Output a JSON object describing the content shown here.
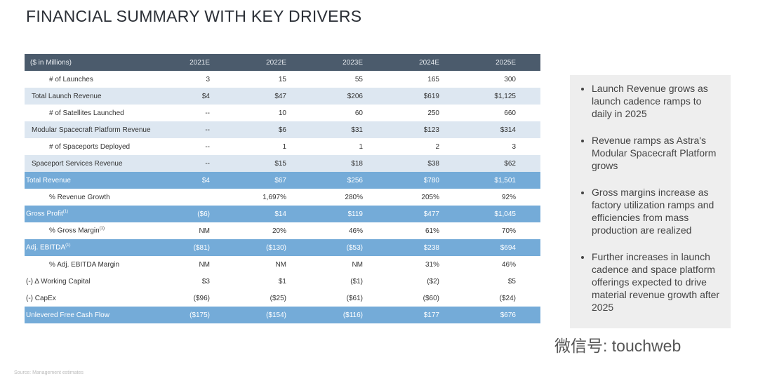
{
  "header": {
    "title": "FINANCIAL SUMMARY WITH KEY DRIVERS"
  },
  "table": {
    "columns": [
      "($ in Millions)",
      "2021E",
      "2022E",
      "2023E",
      "2024E",
      "2025E"
    ],
    "rows": [
      {
        "label": "# of Launches",
        "cells": [
          "3",
          "15",
          "55",
          "165",
          "300"
        ]
      },
      {
        "label": "Total Launch Revenue",
        "cells": [
          "$4",
          "$47",
          "$206",
          "$619",
          "$1,125"
        ]
      },
      {
        "label": "# of Satellites Launched",
        "cells": [
          "--",
          "10",
          "60",
          "250",
          "660"
        ]
      },
      {
        "label": "Modular Spacecraft Platform Revenue",
        "cells": [
          "--",
          "$6",
          "$31",
          "$123",
          "$314"
        ]
      },
      {
        "label": "# of Spaceports Deployed",
        "cells": [
          "--",
          "1",
          "1",
          "2",
          "3"
        ]
      },
      {
        "label": "Spaceport Services Revenue",
        "cells": [
          "--",
          "$15",
          "$18",
          "$38",
          "$62"
        ]
      },
      {
        "label": "Total Revenue",
        "cells": [
          "$4",
          "$67",
          "$256",
          "$780",
          "$1,501"
        ]
      },
      {
        "label": "% Revenue Growth",
        "cells": [
          null,
          "1,697%",
          "280%",
          "205%",
          "92%"
        ]
      },
      {
        "label": "Gross Profit",
        "sup": "(1)",
        "cells": [
          "($6)",
          "$14",
          "$119",
          "$477",
          "$1,045"
        ]
      },
      {
        "label": "% Gross Margin",
        "sup": "(1)",
        "cells": [
          "NM",
          "20%",
          "46%",
          "61%",
          "70%"
        ]
      },
      {
        "label": "Adj. EBITDA",
        "sup": "(1)",
        "cells": [
          "($81)",
          "($130)",
          "($53)",
          "$238",
          "$694"
        ]
      },
      {
        "label": "% Adj. EBITDA Margin",
        "cells": [
          "NM",
          "NM",
          "NM",
          "31%",
          "46%"
        ]
      },
      {
        "label": "(-) Δ Working Capital",
        "cells": [
          "$3",
          "$1",
          "($1)",
          "($2)",
          "$5"
        ]
      },
      {
        "label": "(-) CapEx",
        "cells": [
          "($96)",
          "($25)",
          "($61)",
          "($60)",
          "($24)"
        ]
      },
      {
        "label": "Unlevered Free Cash Flow",
        "cells": [
          "($175)",
          "($154)",
          "($116)",
          "$177",
          "$676"
        ]
      }
    ]
  },
  "bullets": [
    "Launch Revenue grows as launch cadence ramps to daily in 2025",
    "Revenue ramps as Astra's Modular Spacecraft Platform grows",
    "Gross margins increase as factory utilization ramps and efficiencies from mass production are realized",
    "Further increases in launch cadence and space platform offerings expected to drive material revenue growth after 2025"
  ],
  "footer": {
    "source": "Source: Management estimates",
    "watermark": "微信号: touchweb"
  }
}
